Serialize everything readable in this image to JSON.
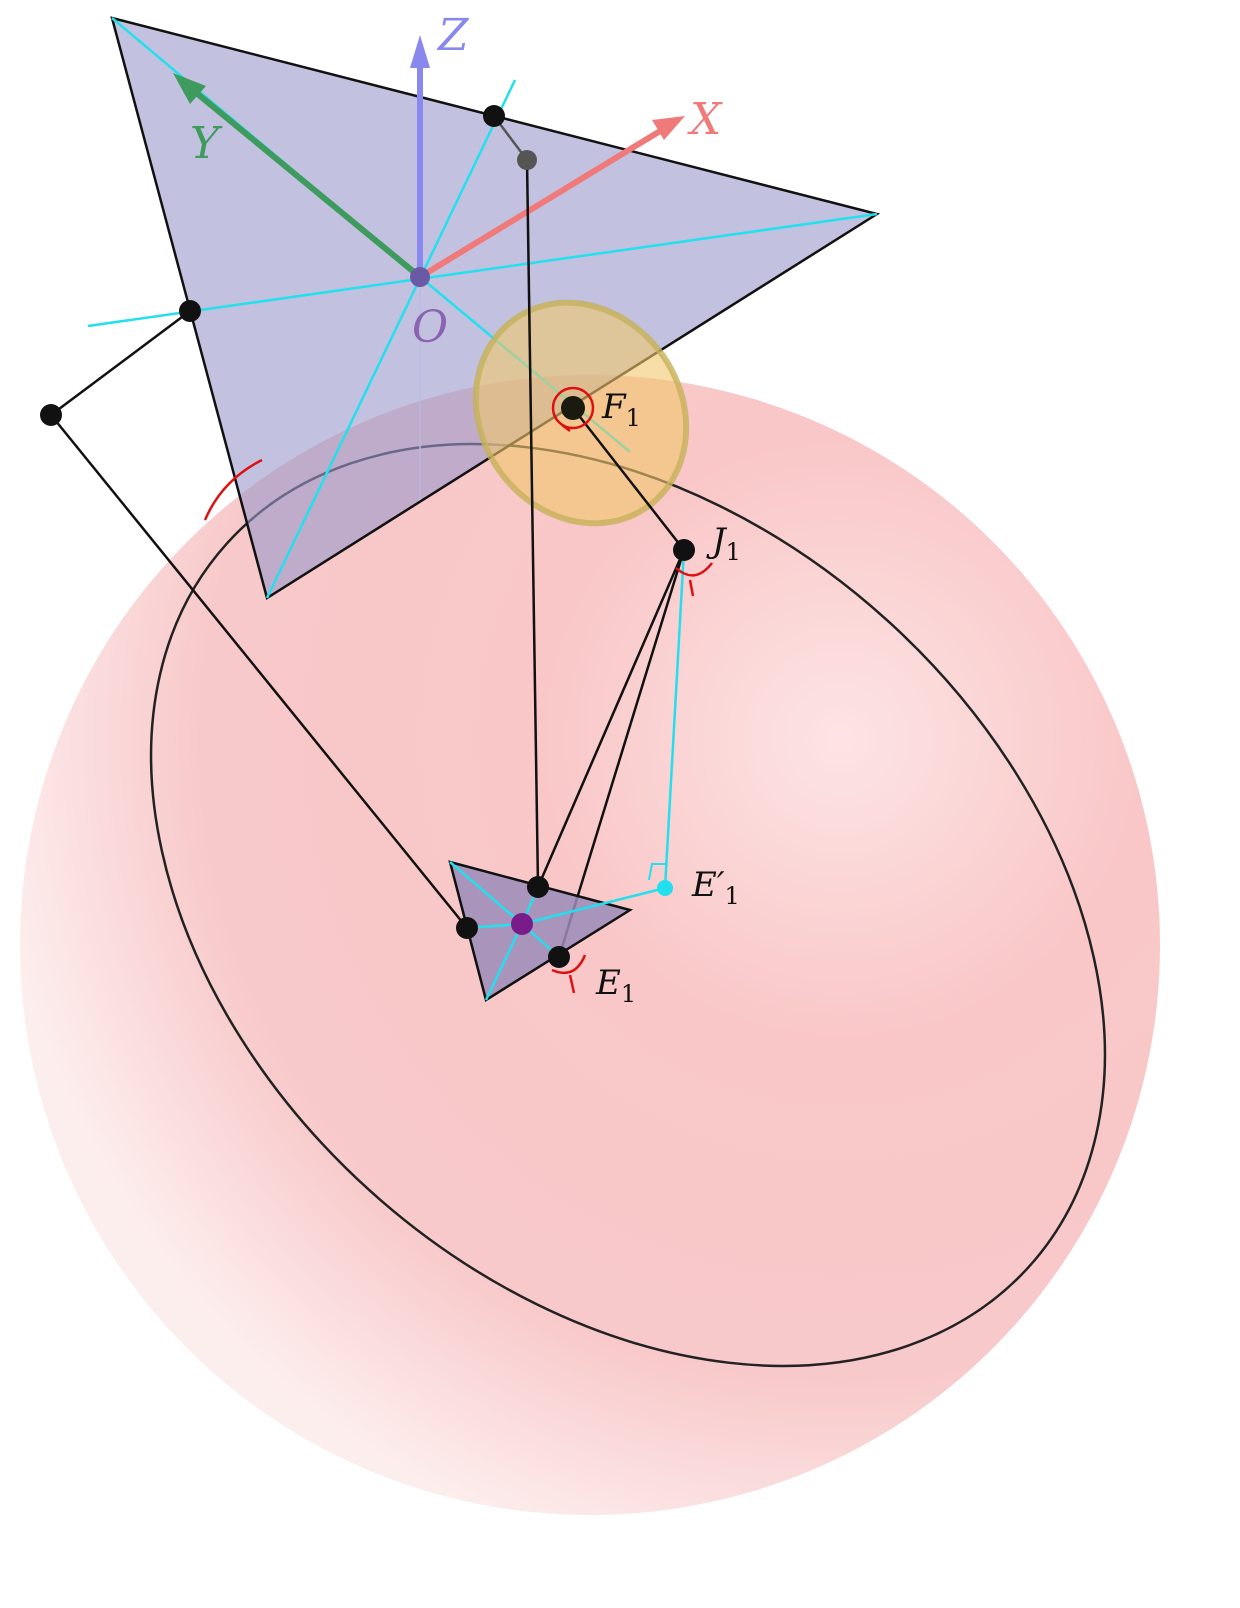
{
  "axes": {
    "z": {
      "label": "Z",
      "color": "#8888ee"
    },
    "x": {
      "label": "X",
      "color": "#f07a7a"
    },
    "y": {
      "label": "Y",
      "color": "#3f9a5e"
    }
  },
  "points": {
    "origin": "O",
    "f1": {
      "base": "F",
      "sub": "1"
    },
    "j1": {
      "base": "J",
      "sub": "1"
    },
    "e1": {
      "base": "E",
      "sub": "1"
    },
    "e1_prime": {
      "base": "E′",
      "sub": "1"
    }
  },
  "colors": {
    "sphere": "#f7b2b4",
    "base_triangle": "#9a9acb",
    "effector_triangle": "#9b8bb8",
    "guide_lines": "#22e0ee",
    "joint_marks": "#dd1111",
    "ellipse_patch": "#f2c66a",
    "center_dot": "#7a1b8a"
  }
}
